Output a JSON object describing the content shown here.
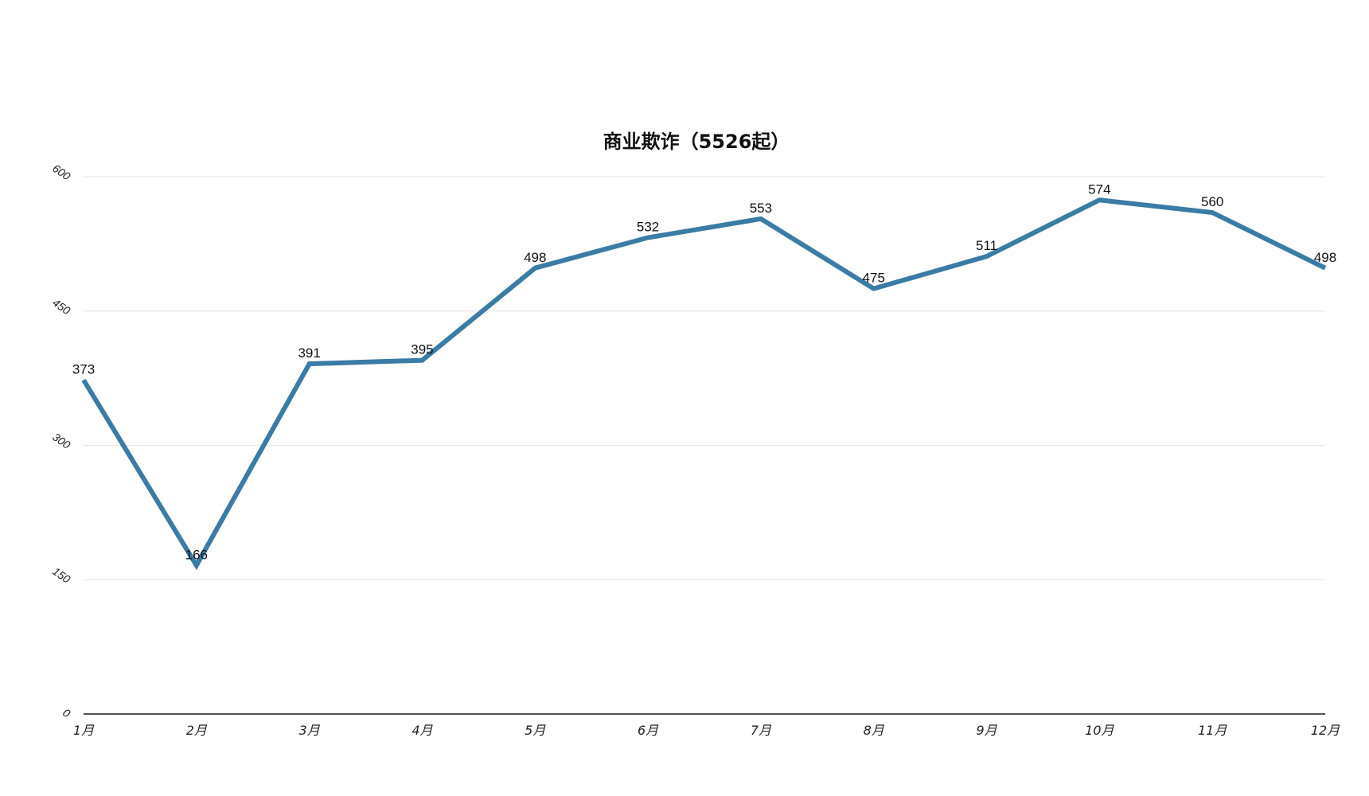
{
  "chart_data": {
    "type": "line",
    "title": "商业欺诈（5526起）",
    "xlabel": "",
    "ylabel": "",
    "categories": [
      "1月",
      "2月",
      "3月",
      "4月",
      "5月",
      "6月",
      "7月",
      "8月",
      "9月",
      "10月",
      "11月",
      "12月"
    ],
    "series": [
      {
        "values": [
          373,
          166,
          391,
          395,
          498,
          532,
          553,
          475,
          511,
          574,
          560,
          498
        ],
        "color": "#3a7ca5"
      }
    ],
    "ylim": [
      0,
      600
    ],
    "yticks": [
      "0",
      "150",
      "300",
      "450",
      "600"
    ],
    "data_labels": [
      "373",
      "166",
      "391",
      "395",
      "498",
      "532",
      "553",
      "475",
      "511",
      "574",
      "560",
      "498"
    ],
    "grid": true,
    "legend": "none"
  }
}
